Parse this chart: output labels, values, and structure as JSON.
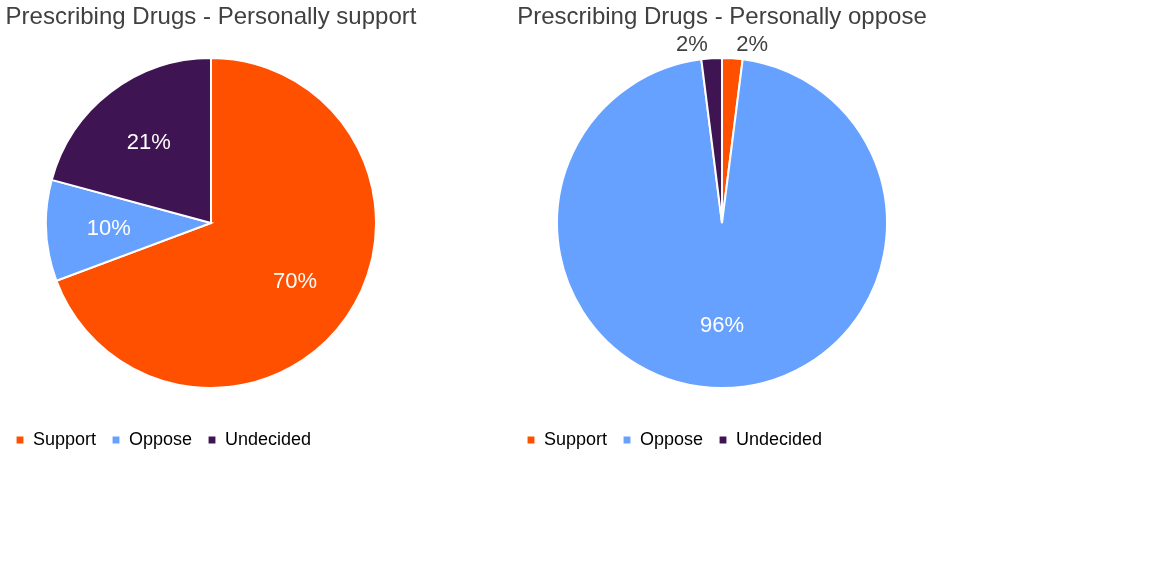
{
  "chart_data": [
    {
      "type": "pie",
      "title": "Prescribing Drugs - Personally support",
      "categories": [
        "Support",
        "Oppose",
        "Undecided"
      ],
      "values": [
        70,
        10,
        21
      ],
      "value_labels": [
        "70%",
        "10%",
        "21%"
      ],
      "colors": [
        "#ff5000",
        "#66a1ff",
        "#3f1453"
      ],
      "legend": "bottom"
    },
    {
      "type": "pie",
      "title": "Prescribing Drugs - Personally oppose",
      "categories": [
        "Support",
        "Oppose",
        "Undecided"
      ],
      "values": [
        2,
        96,
        2
      ],
      "value_labels": [
        "2%",
        "96%",
        "2%"
      ],
      "colors": [
        "#ff5000",
        "#66a1ff",
        "#3f1453"
      ],
      "legend": "bottom"
    }
  ]
}
